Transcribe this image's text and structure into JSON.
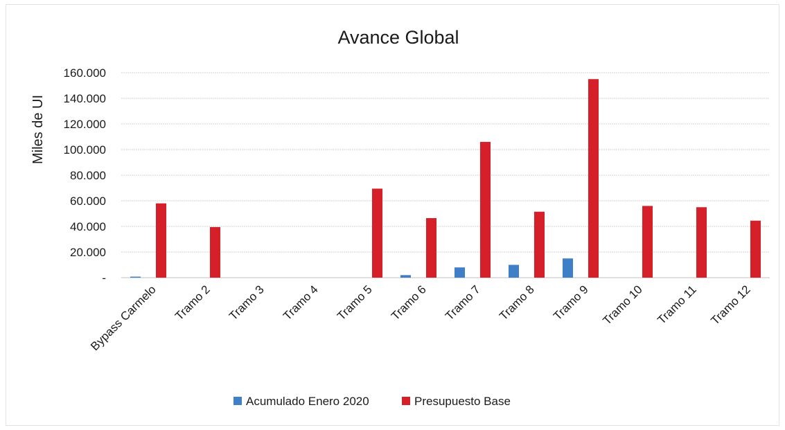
{
  "chart_data": {
    "type": "bar",
    "title": "Avance Global",
    "xlabel": "",
    "ylabel": "Miles de UI",
    "ylim": [
      0,
      160000
    ],
    "yticks": [
      0,
      20000,
      40000,
      60000,
      80000,
      100000,
      120000,
      140000,
      160000
    ],
    "ytick_labels": [
      "-",
      "20.000",
      "40.000",
      "60.000",
      "80.000",
      "100.000",
      "120.000",
      "140.000",
      "160.000"
    ],
    "grid": true,
    "legend_position": "bottom",
    "categories": [
      "Bypass Carmelo",
      "Tramo 2",
      "Tramo 3",
      "Tramo 4",
      "Tramo 5",
      "Tramo 6",
      "Tramo 7",
      "Tramo 8",
      "Tramo 9",
      "Tramo 10",
      "Tramo 11",
      "Tramo 12"
    ],
    "series": [
      {
        "name": "Acumulado Enero 2020",
        "color": "#3f7fc8",
        "values": [
          800,
          0,
          0,
          0,
          0,
          2000,
          8000,
          10000,
          15000,
          0,
          0,
          0
        ]
      },
      {
        "name": "Presupuesto Base",
        "color": "#d5202a",
        "values": [
          58000,
          39500,
          0,
          0,
          69500,
          46500,
          106000,
          51500,
          155000,
          56000,
          55000,
          44500
        ]
      }
    ]
  }
}
